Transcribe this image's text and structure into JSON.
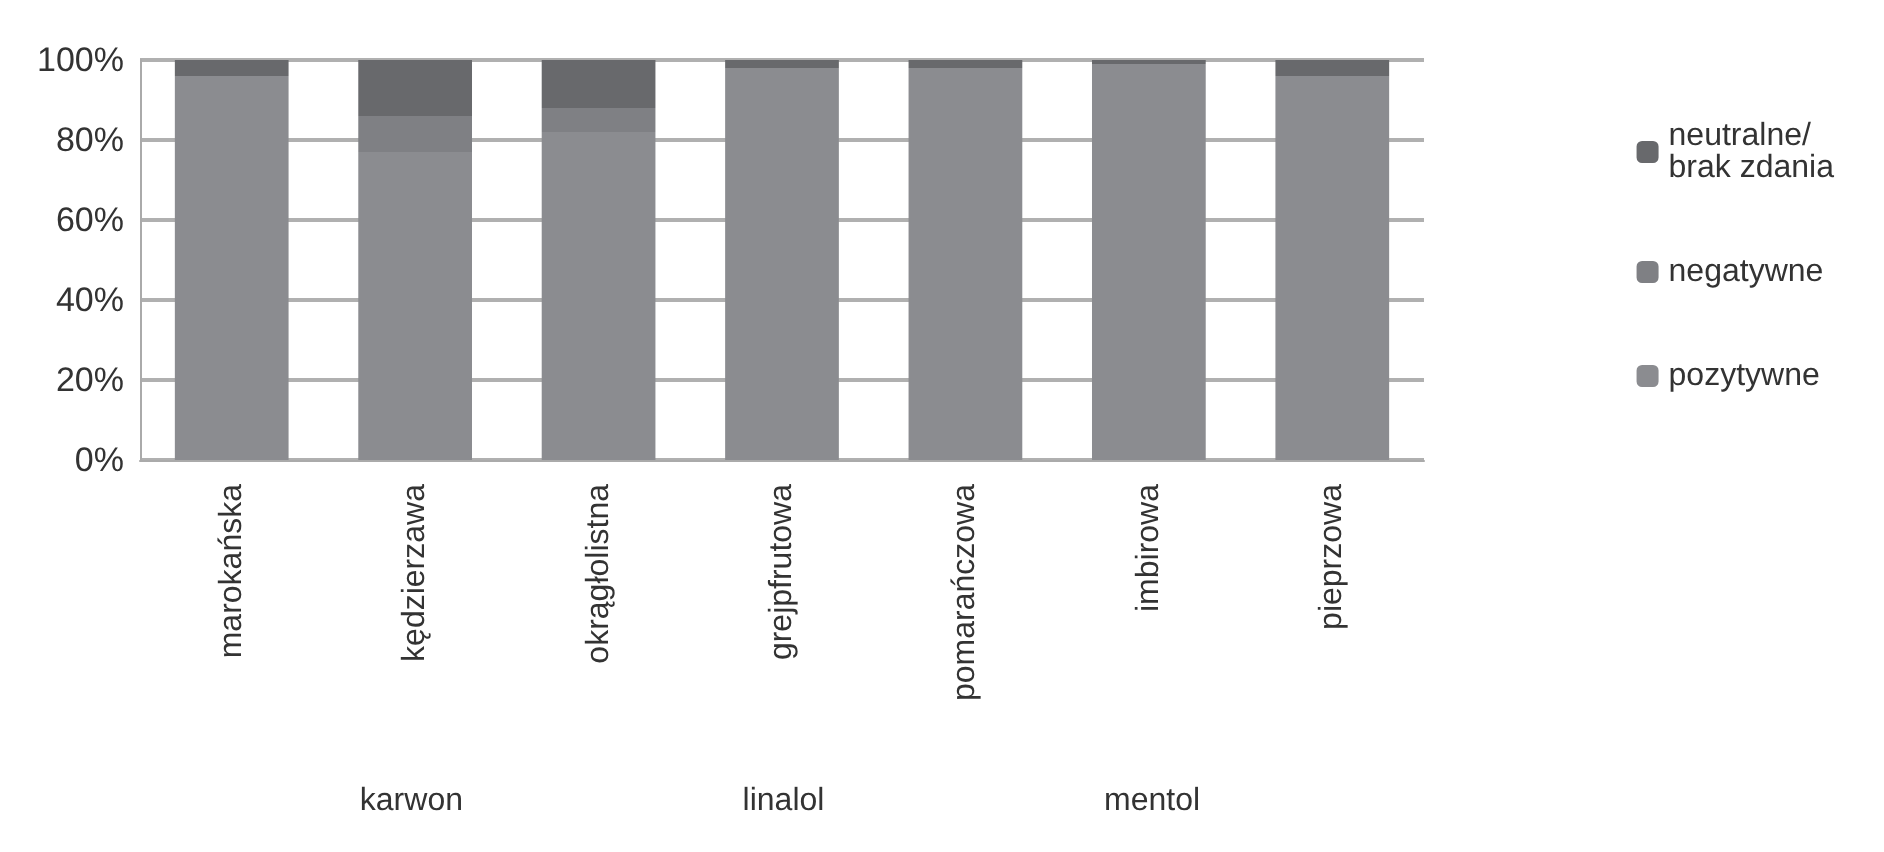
{
  "chart_data": {
    "type": "bar",
    "stacked": true,
    "categories": [
      "marokańska",
      "kędzierzawa",
      "okrągłolistna",
      "grejpfrutowa",
      "pomarańczowa",
      "imbirowa",
      "pieprzowa"
    ],
    "series": [
      {
        "name": "pozytywne",
        "color": "#8b8c90",
        "values": [
          96,
          77,
          82,
          98,
          98,
          99,
          96
        ]
      },
      {
        "name": "negatywne",
        "color": "#7f8084",
        "values": [
          0,
          9,
          6,
          0,
          0,
          0,
          0
        ]
      },
      {
        "name": "neutralne/ brak zdania",
        "color": "#68696c",
        "values": [
          4,
          14,
          12,
          2,
          2,
          1,
          4
        ]
      }
    ],
    "ylim": [
      0,
      100
    ],
    "yticks": [
      {
        "value": 0,
        "label": "0%"
      },
      {
        "value": 20,
        "label": "20%"
      },
      {
        "value": 40,
        "label": "40%"
      },
      {
        "value": 60,
        "label": "60%"
      },
      {
        "value": 80,
        "label": "80%"
      },
      {
        "value": 100,
        "label": "100%"
      }
    ],
    "grid": "y",
    "legend": "right",
    "annotations": [
      "karwon",
      "linalol",
      "mentol"
    ]
  }
}
